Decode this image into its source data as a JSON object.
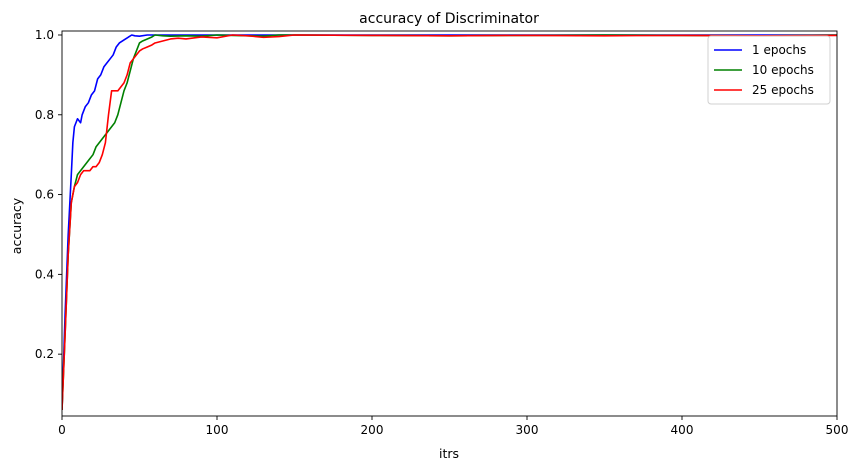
{
  "chart_data": {
    "type": "line",
    "title": "accuracy of Discriminator",
    "xlabel": "itrs",
    "ylabel": "accuracy",
    "xlim": [
      0,
      500
    ],
    "ylim": [
      0.045,
      1.01
    ],
    "xticks": [
      0,
      100,
      200,
      300,
      400,
      500
    ],
    "yticks": [
      0.2,
      0.4,
      0.6,
      0.8,
      1.0
    ],
    "ytick_labels": [
      "0.2",
      "0.4",
      "0.6",
      "0.8",
      "1.0"
    ],
    "grid": false,
    "legend_position": "top-right",
    "series": [
      {
        "name": "1 epochs",
        "color": "#0000ff",
        "x": [
          0,
          2,
          4,
          6,
          7,
          8,
          10,
          12,
          13,
          15,
          17,
          19,
          21,
          23,
          25,
          27,
          29,
          31,
          33,
          35,
          37,
          39,
          41,
          43,
          45,
          47,
          50,
          55,
          60,
          80,
          100,
          150,
          200,
          250,
          300,
          350,
          400,
          450,
          500
        ],
        "y": [
          0.06,
          0.3,
          0.5,
          0.65,
          0.73,
          0.77,
          0.79,
          0.78,
          0.8,
          0.82,
          0.83,
          0.85,
          0.86,
          0.89,
          0.9,
          0.92,
          0.93,
          0.94,
          0.95,
          0.97,
          0.98,
          0.985,
          0.99,
          0.995,
          1.0,
          0.998,
          0.997,
          1.0,
          1.0,
          1.0,
          1.0,
          1.0,
          1.0,
          1.0,
          1.0,
          1.0,
          1.0,
          1.0,
          1.0
        ]
      },
      {
        "name": "10 epochs",
        "color": "#008000",
        "x": [
          0,
          2,
          4,
          6,
          8,
          10,
          12,
          14,
          16,
          18,
          20,
          22,
          24,
          26,
          28,
          30,
          32,
          34,
          36,
          38,
          40,
          42,
          44,
          46,
          48,
          50,
          52,
          55,
          58,
          60,
          65,
          70,
          80,
          90,
          100,
          110,
          120,
          130,
          140,
          150,
          200,
          250,
          300,
          350,
          400,
          450,
          500
        ],
        "y": [
          0.06,
          0.25,
          0.45,
          0.58,
          0.62,
          0.65,
          0.66,
          0.67,
          0.68,
          0.69,
          0.7,
          0.72,
          0.73,
          0.74,
          0.75,
          0.76,
          0.77,
          0.78,
          0.8,
          0.83,
          0.86,
          0.88,
          0.91,
          0.94,
          0.96,
          0.98,
          0.985,
          0.99,
          0.995,
          1.0,
          0.998,
          0.997,
          0.998,
          0.997,
          1.0,
          0.999,
          0.998,
          0.997,
          1.0,
          1.0,
          0.999,
          0.998,
          0.999,
          1.0,
          0.999,
          0.998,
          1.0
        ]
      },
      {
        "name": "25 epochs",
        "color": "#ff0000",
        "x": [
          0,
          2,
          4,
          6,
          8,
          10,
          12,
          14,
          16,
          18,
          20,
          22,
          24,
          26,
          28,
          30,
          32,
          34,
          36,
          38,
          40,
          42,
          44,
          46,
          48,
          50,
          52,
          55,
          58,
          60,
          65,
          70,
          75,
          80,
          90,
          100,
          110,
          120,
          130,
          140,
          150,
          200,
          250,
          300,
          350,
          400,
          450,
          500
        ],
        "y": [
          0.06,
          0.25,
          0.45,
          0.58,
          0.62,
          0.63,
          0.65,
          0.66,
          0.66,
          0.66,
          0.67,
          0.67,
          0.68,
          0.7,
          0.73,
          0.8,
          0.86,
          0.86,
          0.86,
          0.87,
          0.88,
          0.9,
          0.93,
          0.94,
          0.95,
          0.96,
          0.965,
          0.97,
          0.975,
          0.98,
          0.985,
          0.99,
          0.992,
          0.99,
          0.995,
          0.993,
          1.0,
          0.998,
          0.994,
          0.996,
          1.0,
          0.999,
          0.998,
          0.999,
          0.998,
          0.999,
          0.998,
          0.999
        ]
      }
    ]
  }
}
